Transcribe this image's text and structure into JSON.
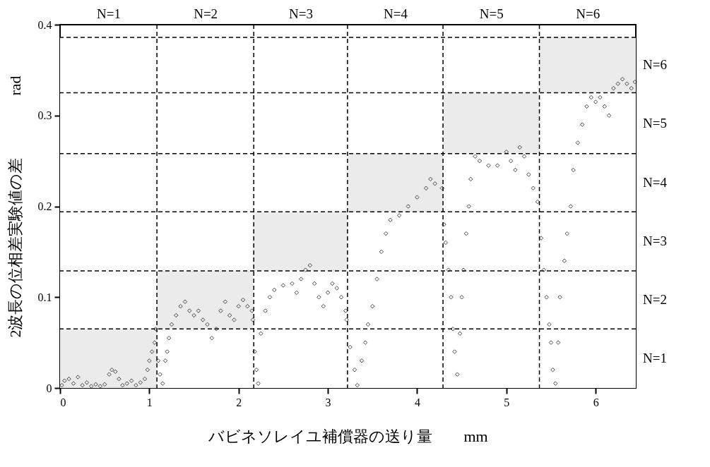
{
  "chart_data": {
    "type": "scatter",
    "xlabel": "バビネソレイユ補償器の送り量　　mm",
    "ylabel": "2波長の位相差実験値の差　　　　rad",
    "xlim": [
      0,
      6.45
    ],
    "xticks": [
      0,
      1,
      2,
      3,
      4,
      5,
      6
    ],
    "ylim": [
      0,
      0.4
    ],
    "yticks": [
      0,
      0.1,
      0.2,
      0.3,
      0.4
    ],
    "x2lim": [
      0,
      6.45
    ],
    "x2ticks": [
      {
        "value": 0.5425,
        "label": "N=1"
      },
      {
        "value": 1.6275,
        "label": "N=2"
      },
      {
        "value": 2.695,
        "label": "N=3"
      },
      {
        "value": 3.755,
        "label": "N=4"
      },
      {
        "value": 4.83,
        "label": "N=5"
      },
      {
        "value": 5.91,
        "label": "N=6"
      }
    ],
    "bands": [
      {
        "axis": "y",
        "from": 0,
        "to": 0.065,
        "label": "N=1",
        "color": "#ffffff"
      },
      {
        "axis": "y",
        "from": 0.065,
        "to": 0.129,
        "label": "N=2",
        "color": "#ffffff"
      },
      {
        "axis": "y",
        "from": 0.129,
        "to": 0.194,
        "label": "N=3",
        "color": "#ffffff"
      },
      {
        "axis": "y",
        "from": 0.194,
        "to": 0.258,
        "label": "N=4",
        "color": "#ffffff"
      },
      {
        "axis": "y",
        "from": 0.258,
        "to": 0.325,
        "label": "N=5",
        "color": "#ffffff"
      },
      {
        "axis": "y",
        "from": 0.325,
        "to": 0.386,
        "label": "N=6",
        "color": "#ffffff"
      }
    ],
    "grid": false,
    "marker": "diamond",
    "series": [
      {
        "type": "bar",
        "color": "#ebebeb",
        "x": [
          0.5425,
          1.6275,
          2.695,
          3.755,
          4.83,
          5.91
        ],
        "base": [
          0,
          0.065,
          0.129,
          0.194,
          0.258,
          0.325
        ],
        "values": [
          0.065,
          0.064,
          0.065,
          0.064,
          0.067,
          0.061
        ]
      },
      {
        "color": "#000000",
        "x": [
          0.02,
          0.05,
          0.1,
          0.15,
          0.2,
          0.25,
          0.3,
          0.35,
          0.4,
          0.45,
          0.5,
          0.55,
          0.58,
          0.62,
          0.66,
          0.7,
          0.75,
          0.8,
          0.85,
          0.9,
          0.95,
          0.98,
          1.0,
          1.03,
          1.06,
          1.07,
          1.1,
          1.12,
          1.15,
          1.18,
          1.2,
          1.22,
          1.25,
          1.3,
          1.35,
          1.4,
          1.45,
          1.5,
          1.55,
          1.6,
          1.65,
          1.7,
          1.75,
          1.8,
          1.85,
          1.9,
          1.95,
          2.0,
          2.05,
          2.1,
          2.15,
          2.16,
          2.18,
          2.2,
          2.22,
          2.25,
          2.3,
          2.35,
          2.4,
          2.5,
          2.6,
          2.65,
          2.7,
          2.75,
          2.8,
          2.85,
          2.9,
          2.95,
          3.0,
          3.05,
          3.1,
          3.15,
          3.2,
          3.21,
          3.25,
          3.3,
          3.33,
          3.38,
          3.42,
          3.45,
          3.5,
          3.55,
          3.6,
          3.65,
          3.7,
          3.8,
          3.9,
          4.0,
          4.1,
          4.15,
          4.2,
          4.28,
          4.3,
          4.32,
          4.35,
          4.38,
          4.4,
          4.42,
          4.45,
          4.48,
          4.5,
          4.52,
          4.55,
          4.58,
          4.6,
          4.65,
          4.7,
          4.8,
          4.9,
          5.0,
          5.05,
          5.1,
          5.15,
          5.2,
          5.25,
          5.3,
          5.35,
          5.39,
          5.42,
          5.45,
          5.48,
          5.5,
          5.52,
          5.55,
          5.58,
          5.6,
          5.65,
          5.68,
          5.72,
          5.75,
          5.8,
          5.85,
          5.9,
          5.95,
          6.0,
          6.05,
          6.1,
          6.15,
          6.2,
          6.25,
          6.3,
          6.35,
          6.4,
          6.44
        ],
        "values": [
          0.003,
          0.008,
          0.01,
          0.005,
          0.012,
          0.003,
          0.006,
          0.002,
          0.004,
          0.002,
          0.004,
          0.015,
          0.02,
          0.018,
          0.01,
          0.003,
          0.005,
          0.008,
          0.003,
          0.006,
          0.01,
          0.02,
          0.03,
          0.04,
          0.05,
          0.065,
          0.03,
          0.015,
          0.005,
          0.03,
          0.04,
          0.055,
          0.07,
          0.08,
          0.09,
          0.095,
          0.085,
          0.08,
          0.085,
          0.075,
          0.07,
          0.055,
          0.065,
          0.085,
          0.095,
          0.08,
          0.075,
          0.09,
          0.097,
          0.09,
          0.085,
          0.075,
          0.04,
          0.02,
          0.005,
          0.06,
          0.085,
          0.1,
          0.108,
          0.113,
          0.115,
          0.105,
          0.12,
          0.13,
          0.135,
          0.115,
          0.1,
          0.09,
          0.105,
          0.115,
          0.11,
          0.1,
          0.085,
          0.075,
          0.045,
          0.02,
          0.003,
          0.03,
          0.05,
          0.07,
          0.09,
          0.12,
          0.15,
          0.17,
          0.185,
          0.19,
          0.2,
          0.21,
          0.22,
          0.23,
          0.225,
          0.22,
          0.18,
          0.16,
          0.13,
          0.1,
          0.065,
          0.04,
          0.015,
          0.06,
          0.1,
          0.13,
          0.17,
          0.2,
          0.23,
          0.255,
          0.25,
          0.245,
          0.245,
          0.26,
          0.25,
          0.24,
          0.265,
          0.255,
          0.235,
          0.22,
          0.205,
          0.165,
          0.13,
          0.1,
          0.07,
          0.05,
          0.02,
          0.005,
          0.05,
          0.1,
          0.14,
          0.17,
          0.2,
          0.24,
          0.27,
          0.29,
          0.31,
          0.32,
          0.315,
          0.32,
          0.31,
          0.3,
          0.33,
          0.335,
          0.34,
          0.335,
          0.33,
          0.337
        ]
      }
    ],
    "ref_lines": [
      {
        "axis": "x",
        "value": 1.085,
        "line_style": "dashed"
      },
      {
        "axis": "x",
        "value": 2.17,
        "line_style": "dashed"
      },
      {
        "axis": "x",
        "value": 3.22,
        "line_style": "dashed"
      },
      {
        "axis": "x",
        "value": 4.29,
        "line_style": "dashed"
      },
      {
        "axis": "x",
        "value": 5.37,
        "line_style": "dashed"
      },
      {
        "axis": "y",
        "value": 0.065,
        "line_style": "dashed"
      },
      {
        "axis": "y",
        "value": 0.129,
        "line_style": "dashed"
      },
      {
        "axis": "y",
        "value": 0.194,
        "line_style": "dashed"
      },
      {
        "axis": "y",
        "value": 0.258,
        "line_style": "dashed"
      },
      {
        "axis": "y",
        "value": 0.325,
        "line_style": "dashed"
      },
      {
        "axis": "y",
        "value": 0.386,
        "line_style": "dashed"
      }
    ]
  }
}
